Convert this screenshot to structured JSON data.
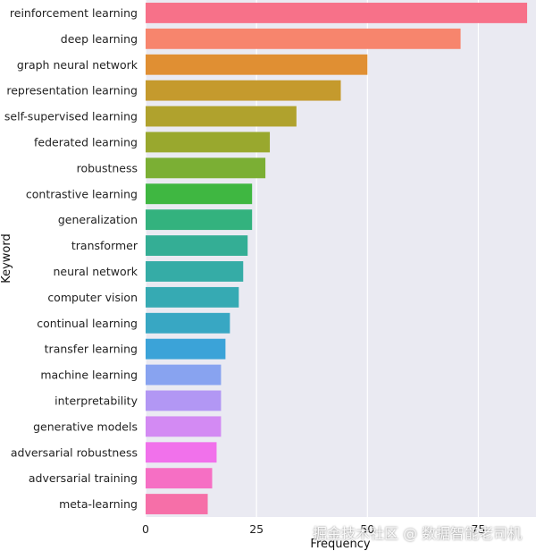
{
  "chart_data": {
    "type": "bar",
    "orientation": "horizontal",
    "title": "",
    "xlabel": "Frequency",
    "ylabel": "Keyword",
    "xlim": [
      0,
      88
    ],
    "xticks": [
      0,
      25,
      50,
      75,
      100,
      125,
      150,
      175,
      200
    ],
    "grid": true,
    "background": "#eaeaf2",
    "categories": [
      "reinforcement learning",
      "deep learning",
      "graph neural network",
      "representation learning",
      "self-supervised learning",
      "federated learning",
      "robustness",
      "contrastive learning",
      "generalization",
      "transformer",
      "neural network",
      "computer vision",
      "continual learning",
      "transfer learning",
      "machine learning",
      "interpretability",
      "generative models",
      "adversarial robustness",
      "adversarial training",
      "meta-learning"
    ],
    "values": [
      86,
      71,
      50,
      44,
      34,
      28,
      27,
      24,
      24,
      23,
      22,
      21,
      19,
      18,
      17,
      17,
      17,
      16,
      15,
      14
    ],
    "colors": [
      "#f77189",
      "#f7856d",
      "#e08f33",
      "#c59a2d",
      "#b0a22d",
      "#99a82e",
      "#7baf34",
      "#3fb741",
      "#33b27e",
      "#34ae95",
      "#35aca6",
      "#36aab3",
      "#38a7c3",
      "#3ba3d8",
      "#88a3f0",
      "#b297f4",
      "#d38af3",
      "#f171eb",
      "#f66fc4",
      "#f66fa8"
    ]
  },
  "watermark": "掘金技术社区 @ 数据智能老司机"
}
